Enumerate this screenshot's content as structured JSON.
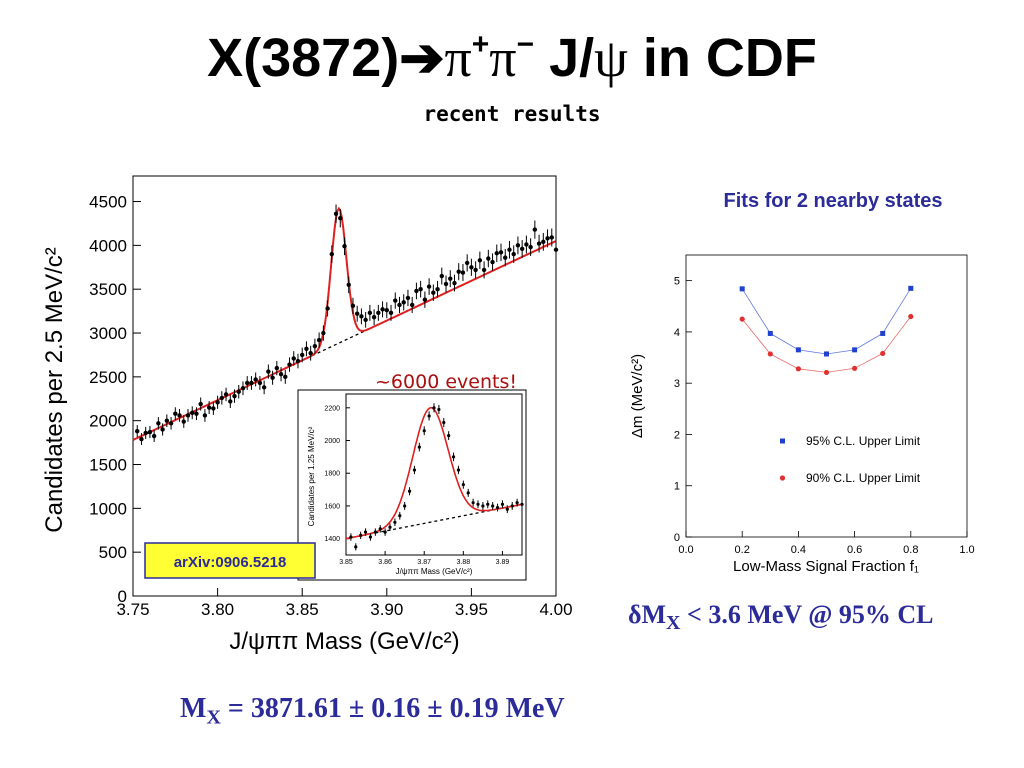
{
  "slide": {
    "title": {
      "main": "X(3872)",
      "arrow": "➔",
      "pi": "π",
      "plus": "+",
      "pi2": "π",
      "minus": "−",
      "jpsi_j": " J/",
      "psi": "ψ",
      "rest": " in CDF"
    },
    "subtitle": "recent results"
  },
  "annotations": {
    "events": "~6000 events!",
    "arxiv": "arXiv:0906.5218",
    "fits_title": "Fits for 2 nearby states"
  },
  "results": {
    "dm": {
      "delta": "δ",
      "m": "M",
      "sub": "X",
      "text": " < 3.6 MeV @ 95% CL"
    },
    "mx": {
      "m": "M",
      "sub": "X",
      "text": " = 3871.61 ± 0.16 ±  0.19 MeV"
    }
  },
  "colors": {
    "fit_curve": "#e02020",
    "data_points": "#000000",
    "background_line": "#000000",
    "series_95": "#2040d0",
    "series_90": "#e03030",
    "arxiv_box": "#ffff33",
    "arxiv_border": "#2a2a9a",
    "title_blue": "#2b2b9a",
    "events_text": "#aa1010"
  },
  "chart_data": [
    {
      "type": "scatter",
      "xlabel": "J/ψππ Mass (GeV/c²)",
      "ylabel": "Candidates per 2.5 MeV/c²",
      "xlim": [
        3.75,
        4.0
      ],
      "ylim": [
        0,
        4700
      ],
      "xticks": [
        "3.75",
        "3.80",
        "3.85",
        "3.90",
        "3.95",
        "4.00"
      ],
      "yticks": [
        "0",
        "500",
        "1000",
        "1500",
        "2000",
        "2500",
        "3000",
        "3500",
        "4000",
        "4500"
      ],
      "fit": {
        "peak_mass": 3.8716,
        "peak_height": 4420,
        "background_at_xmin": 1780,
        "background_at_xmax": 4050,
        "resolution_width": 0.0045
      },
      "series": [
        {
          "values": [
            [
              3.7525,
              1880
            ],
            [
              3.755,
              1790
            ],
            [
              3.7575,
              1860
            ],
            [
              3.76,
              1870
            ],
            [
              3.7625,
              1825
            ],
            [
              3.765,
              1970
            ],
            [
              3.7675,
              1900
            ],
            [
              3.77,
              2000
            ],
            [
              3.7725,
              1970
            ],
            [
              3.775,
              2080
            ],
            [
              3.7775,
              2060
            ],
            [
              3.78,
              1990
            ],
            [
              3.7825,
              2060
            ],
            [
              3.785,
              2090
            ],
            [
              3.7875,
              2080
            ],
            [
              3.79,
              2190
            ],
            [
              3.7925,
              2060
            ],
            [
              3.795,
              2150
            ],
            [
              3.7975,
              2140
            ],
            [
              3.8,
              2210
            ],
            [
              3.8025,
              2260
            ],
            [
              3.805,
              2300
            ],
            [
              3.8075,
              2220
            ],
            [
              3.81,
              2280
            ],
            [
              3.8125,
              2330
            ],
            [
              3.815,
              2370
            ],
            [
              3.8175,
              2430
            ],
            [
              3.82,
              2430
            ],
            [
              3.8225,
              2470
            ],
            [
              3.825,
              2430
            ],
            [
              3.8275,
              2380
            ],
            [
              3.83,
              2560
            ],
            [
              3.8325,
              2490
            ],
            [
              3.835,
              2600
            ],
            [
              3.8375,
              2530
            ],
            [
              3.84,
              2500
            ],
            [
              3.8425,
              2640
            ],
            [
              3.845,
              2710
            ],
            [
              3.8475,
              2680
            ],
            [
              3.85,
              2750
            ],
            [
              3.8525,
              2820
            ],
            [
              3.855,
              2770
            ],
            [
              3.8575,
              2850
            ],
            [
              3.86,
              2920
            ],
            [
              3.8625,
              3000
            ],
            [
              3.865,
              3280
            ],
            [
              3.8675,
              3900
            ],
            [
              3.87,
              4360
            ],
            [
              3.8725,
              4310
            ],
            [
              3.875,
              3990
            ],
            [
              3.8775,
              3550
            ],
            [
              3.88,
              3310
            ],
            [
              3.8825,
              3220
            ],
            [
              3.885,
              3190
            ],
            [
              3.8875,
              3150
            ],
            [
              3.89,
              3230
            ],
            [
              3.8925,
              3180
            ],
            [
              3.895,
              3230
            ],
            [
              3.8975,
              3270
            ],
            [
              3.9,
              3260
            ],
            [
              3.9025,
              3230
            ],
            [
              3.905,
              3370
            ],
            [
              3.9075,
              3320
            ],
            [
              3.91,
              3350
            ],
            [
              3.9125,
              3400
            ],
            [
              3.915,
              3320
            ],
            [
              3.9175,
              3480
            ],
            [
              3.92,
              3500
            ],
            [
              3.9225,
              3380
            ],
            [
              3.925,
              3530
            ],
            [
              3.9275,
              3460
            ],
            [
              3.93,
              3500
            ],
            [
              3.9325,
              3650
            ],
            [
              3.935,
              3560
            ],
            [
              3.9375,
              3620
            ],
            [
              3.94,
              3570
            ],
            [
              3.9425,
              3700
            ],
            [
              3.945,
              3690
            ],
            [
              3.9475,
              3800
            ],
            [
              3.95,
              3750
            ],
            [
              3.9525,
              3720
            ],
            [
              3.955,
              3830
            ],
            [
              3.9575,
              3720
            ],
            [
              3.96,
              3850
            ],
            [
              3.9625,
              3810
            ],
            [
              3.965,
              3910
            ],
            [
              3.9675,
              3920
            ],
            [
              3.97,
              3860
            ],
            [
              3.9725,
              3950
            ],
            [
              3.975,
              3900
            ],
            [
              3.9775,
              4000
            ],
            [
              3.98,
              3960
            ],
            [
              3.9825,
              4010
            ],
            [
              3.985,
              3980
            ],
            [
              3.9875,
              4180
            ],
            [
              3.99,
              4020
            ],
            [
              3.9925,
              4040
            ],
            [
              3.995,
              4080
            ],
            [
              3.9975,
              4090
            ],
            [
              4.0,
              3950
            ]
          ]
        }
      ]
    },
    {
      "type": "scatter",
      "xlabel": "J/ψππ Mass (GeV/c²)",
      "ylabel": "Candidates per 1.25 MeV/c²",
      "xlim": [
        3.85,
        3.895
      ],
      "ylim": [
        1300,
        2260
      ],
      "xticks": [
        "3.85",
        "3.86",
        "3.87",
        "3.88",
        "3.89"
      ],
      "yticks": [
        "1400",
        "1600",
        "1800",
        "2000",
        "2200"
      ],
      "fit": {
        "peak_mass": 3.8716,
        "peak_height": 2200,
        "background_at_xmin": 1400,
        "background_at_xmax": 1610,
        "resolution_width": 0.0045
      },
      "series": [
        {
          "values": [
            [
              3.85125,
              1410
            ],
            [
              3.8525,
              1350
            ],
            [
              3.85375,
              1420
            ],
            [
              3.855,
              1440
            ],
            [
              3.85625,
              1410
            ],
            [
              3.8575,
              1440
            ],
            [
              3.85875,
              1460
            ],
            [
              3.86,
              1440
            ],
            [
              3.86125,
              1470
            ],
            [
              3.8625,
              1500
            ],
            [
              3.86375,
              1540
            ],
            [
              3.865,
              1600
            ],
            [
              3.86625,
              1690
            ],
            [
              3.8675,
              1820
            ],
            [
              3.86875,
              1960
            ],
            [
              3.87,
              2060
            ],
            [
              3.87125,
              2150
            ],
            [
              3.8725,
              2200
            ],
            [
              3.87375,
              2190
            ],
            [
              3.875,
              2110
            ],
            [
              3.87625,
              2030
            ],
            [
              3.8775,
              1900
            ],
            [
              3.87875,
              1820
            ],
            [
              3.88,
              1730
            ],
            [
              3.88125,
              1680
            ],
            [
              3.8825,
              1620
            ],
            [
              3.88375,
              1610
            ],
            [
              3.885,
              1600
            ],
            [
              3.88625,
              1610
            ],
            [
              3.8875,
              1600
            ],
            [
              3.88875,
              1590
            ],
            [
              3.89,
              1610
            ],
            [
              3.89125,
              1580
            ],
            [
              3.8925,
              1600
            ],
            [
              3.89375,
              1620
            ],
            [
              3.895,
              1610
            ]
          ]
        }
      ]
    },
    {
      "type": "line",
      "xlabel": "Low-Mass Signal Fraction f₁",
      "ylabel": "Δm (MeV/c²)",
      "xlim": [
        0.0,
        1.0
      ],
      "ylim": [
        0,
        5.5
      ],
      "xticks": [
        "0.0",
        "0.2",
        "0.4",
        "0.6",
        "0.8",
        "1.0"
      ],
      "yticks": [
        "0",
        "1",
        "2",
        "3",
        "4",
        "5"
      ],
      "legend": "right",
      "x": [
        0.2,
        0.3,
        0.4,
        0.5,
        0.6,
        0.7,
        0.8
      ],
      "series": [
        {
          "name": "95% C.L. Upper Limit",
          "values": [
            4.84,
            3.97,
            3.65,
            3.57,
            3.65,
            3.97,
            4.85
          ]
        },
        {
          "name": "90% C.L. Upper Limit",
          "values": [
            4.25,
            3.57,
            3.28,
            3.21,
            3.29,
            3.58,
            4.3
          ]
        }
      ]
    }
  ]
}
